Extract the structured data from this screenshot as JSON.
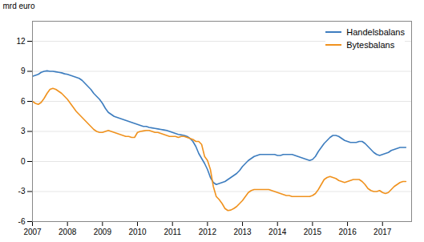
{
  "chart_data": {
    "type": "line",
    "ylabel": "mrd euro",
    "xlim": [
      2007.0,
      2017.83
    ],
    "xticks": [
      2007,
      2008,
      2009,
      2010,
      2011,
      2012,
      2013,
      2014,
      2015,
      2016,
      2017
    ],
    "ylim": [
      -6,
      14
    ],
    "yticks": [
      -6,
      -3,
      0,
      3,
      6,
      9,
      12
    ],
    "grid": "y",
    "legend": "upper right",
    "x": [
      2007.0,
      2007.083,
      2007.167,
      2007.25,
      2007.333,
      2007.417,
      2007.5,
      2007.583,
      2007.667,
      2007.75,
      2007.833,
      2007.917,
      2008.0,
      2008.083,
      2008.167,
      2008.25,
      2008.333,
      2008.417,
      2008.5,
      2008.583,
      2008.667,
      2008.75,
      2008.833,
      2008.917,
      2009.0,
      2009.083,
      2009.167,
      2009.25,
      2009.333,
      2009.417,
      2009.5,
      2009.583,
      2009.667,
      2009.75,
      2009.833,
      2009.917,
      2010.0,
      2010.083,
      2010.167,
      2010.25,
      2010.333,
      2010.417,
      2010.5,
      2010.583,
      2010.667,
      2010.75,
      2010.833,
      2010.917,
      2011.0,
      2011.083,
      2011.167,
      2011.25,
      2011.333,
      2011.417,
      2011.5,
      2011.583,
      2011.667,
      2011.75,
      2011.833,
      2011.917,
      2012.0,
      2012.083,
      2012.167,
      2012.25,
      2012.333,
      2012.417,
      2012.5,
      2012.583,
      2012.667,
      2012.75,
      2012.833,
      2012.917,
      2013.0,
      2013.083,
      2013.167,
      2013.25,
      2013.333,
      2013.417,
      2013.5,
      2013.583,
      2013.667,
      2013.75,
      2013.833,
      2013.917,
      2014.0,
      2014.083,
      2014.167,
      2014.25,
      2014.333,
      2014.417,
      2014.5,
      2014.583,
      2014.667,
      2014.75,
      2014.833,
      2014.917,
      2015.0,
      2015.083,
      2015.167,
      2015.25,
      2015.333,
      2015.417,
      2015.5,
      2015.583,
      2015.667,
      2015.75,
      2015.833,
      2015.917,
      2016.0,
      2016.083,
      2016.167,
      2016.25,
      2016.333,
      2016.417,
      2016.5,
      2016.583,
      2016.667,
      2016.75,
      2016.833,
      2016.917,
      2017.0,
      2017.083,
      2017.167,
      2017.25,
      2017.333,
      2017.417,
      2017.5,
      2017.583,
      2017.667
    ],
    "series": [
      {
        "name": "Handelsbalans",
        "color": "#3d7dbf",
        "values": [
          8.5,
          8.6,
          8.7,
          8.9,
          9.0,
          9.05,
          9.0,
          9.0,
          8.95,
          8.9,
          8.85,
          8.75,
          8.7,
          8.6,
          8.5,
          8.4,
          8.3,
          8.1,
          7.8,
          7.5,
          7.2,
          6.8,
          6.5,
          6.2,
          5.8,
          5.3,
          4.9,
          4.7,
          4.5,
          4.4,
          4.3,
          4.2,
          4.1,
          4.0,
          3.9,
          3.8,
          3.7,
          3.6,
          3.5,
          3.5,
          3.4,
          3.35,
          3.3,
          3.25,
          3.2,
          3.15,
          3.1,
          3.0,
          2.9,
          2.8,
          2.7,
          2.65,
          2.6,
          2.5,
          2.3,
          2.0,
          1.5,
          0.8,
          0.3,
          -0.2,
          -0.8,
          -1.6,
          -2.1,
          -2.3,
          -2.2,
          -2.1,
          -2.0,
          -1.8,
          -1.6,
          -1.4,
          -1.2,
          -0.9,
          -0.5,
          -0.2,
          0.1,
          0.3,
          0.5,
          0.6,
          0.7,
          0.7,
          0.7,
          0.7,
          0.7,
          0.7,
          0.6,
          0.6,
          0.7,
          0.7,
          0.7,
          0.7,
          0.6,
          0.5,
          0.4,
          0.3,
          0.2,
          0.1,
          0.2,
          0.5,
          1.0,
          1.4,
          1.8,
          2.1,
          2.4,
          2.6,
          2.6,
          2.5,
          2.3,
          2.1,
          2.0,
          1.9,
          1.9,
          1.9,
          2.0,
          2.0,
          1.8,
          1.5,
          1.2,
          0.9,
          0.7,
          0.6,
          0.7,
          0.8,
          0.9,
          1.1,
          1.2,
          1.3,
          1.4,
          1.4,
          1.4
        ]
      },
      {
        "name": "Bytesbalans",
        "color": "#f0921e",
        "values": [
          6.0,
          5.8,
          5.7,
          5.9,
          6.3,
          6.8,
          7.2,
          7.3,
          7.2,
          7.0,
          6.8,
          6.5,
          6.2,
          5.8,
          5.4,
          5.0,
          4.7,
          4.4,
          4.1,
          3.8,
          3.5,
          3.2,
          3.0,
          2.9,
          2.9,
          3.0,
          3.1,
          3.0,
          2.9,
          2.8,
          2.7,
          2.6,
          2.5,
          2.5,
          2.4,
          2.4,
          2.9,
          3.0,
          3.05,
          3.1,
          3.1,
          3.0,
          2.9,
          2.9,
          2.8,
          2.7,
          2.6,
          2.5,
          2.5,
          2.5,
          2.4,
          2.5,
          2.5,
          2.4,
          2.3,
          2.2,
          2.0,
          2.0,
          1.7,
          0.5,
          0.1,
          -0.8,
          -2.5,
          -3.5,
          -3.8,
          -4.2,
          -4.7,
          -4.9,
          -4.85,
          -4.7,
          -4.5,
          -4.2,
          -3.9,
          -3.5,
          -3.1,
          -2.9,
          -2.8,
          -2.8,
          -2.8,
          -2.8,
          -2.8,
          -2.8,
          -2.9,
          -3.0,
          -3.1,
          -3.2,
          -3.3,
          -3.4,
          -3.4,
          -3.5,
          -3.5,
          -3.5,
          -3.5,
          -3.5,
          -3.5,
          -3.5,
          -3.4,
          -3.2,
          -2.8,
          -2.3,
          -1.8,
          -1.6,
          -1.5,
          -1.6,
          -1.7,
          -1.9,
          -2.0,
          -2.1,
          -2.0,
          -1.9,
          -1.8,
          -1.8,
          -1.8,
          -2.0,
          -2.3,
          -2.7,
          -2.9,
          -3.0,
          -3.0,
          -2.9,
          -3.1,
          -3.2,
          -3.1,
          -2.8,
          -2.5,
          -2.3,
          -2.1,
          -2.0,
          -2.0
        ]
      }
    ]
  }
}
